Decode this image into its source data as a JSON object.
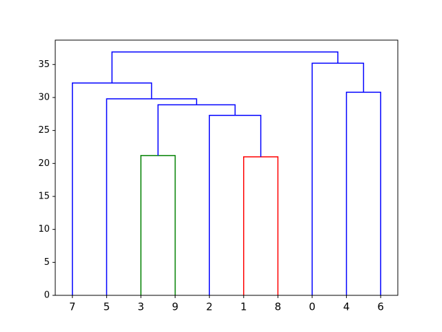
{
  "chart_data": {
    "type": "dendrogram",
    "categories": [
      "7",
      "5",
      "3",
      "9",
      "2",
      "1",
      "8",
      "0",
      "4",
      "6"
    ],
    "merges": [
      {
        "children": [
          2,
          3
        ],
        "height": 21.2,
        "color": "#008000"
      },
      {
        "children": [
          5,
          6
        ],
        "height": 21.0,
        "color": "#ff0000"
      },
      {
        "children": [
          4,
          11
        ],
        "height": 27.3,
        "color": "#0000ff"
      },
      {
        "children": [
          10,
          12
        ],
        "height": 28.9,
        "color": "#0000ff"
      },
      {
        "children": [
          1,
          13
        ],
        "height": 29.8,
        "color": "#0000ff"
      },
      {
        "children": [
          0,
          14
        ],
        "height": 32.2,
        "color": "#0000ff"
      },
      {
        "children": [
          8,
          9
        ],
        "height": 30.8,
        "color": "#0000ff"
      },
      {
        "children": [
          7,
          16
        ],
        "height": 35.2,
        "color": "#0000ff"
      },
      {
        "children": [
          15,
          17
        ],
        "height": 36.9,
        "color": "#0000ff"
      }
    ],
    "ylim": [
      0,
      38.7
    ],
    "yticks": [
      0,
      5,
      10,
      15,
      20,
      25,
      30,
      35
    ]
  }
}
